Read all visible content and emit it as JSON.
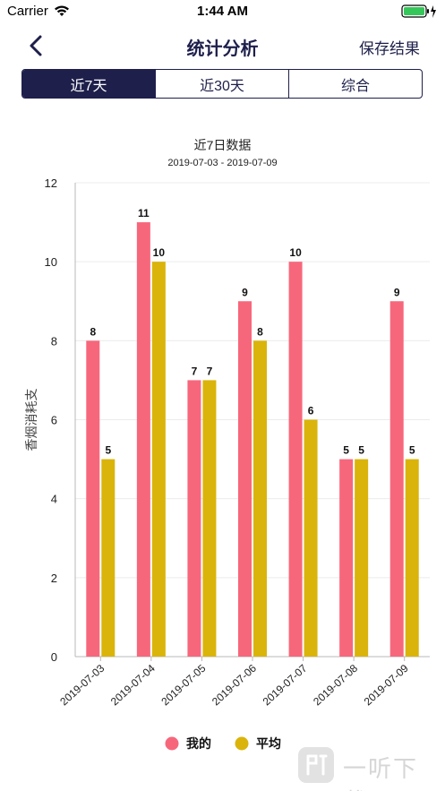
{
  "status_bar": {
    "carrier": "Carrier",
    "time": "1:44 AM"
  },
  "nav": {
    "title": "统计分析",
    "save_label": "保存结果"
  },
  "tabs": [
    {
      "label": "近7天",
      "active": true
    },
    {
      "label": "近30天",
      "active": false
    },
    {
      "label": "综合",
      "active": false
    }
  ],
  "colors": {
    "accent": "#1e1f4b",
    "mine": "#f7677c",
    "average": "#dab40a"
  },
  "chart_data": {
    "type": "bar",
    "title": "近7日数据",
    "subtitle": "2019-07-03 - 2019-07-09",
    "ylabel": "香烟消耗支",
    "xlabel": "",
    "ylim": [
      0,
      12
    ],
    "yticks": [
      0,
      2,
      4,
      6,
      8,
      10,
      12
    ],
    "categories": [
      "2019-07-03",
      "2019-07-04",
      "2019-07-05",
      "2019-07-06",
      "2019-07-07",
      "2019-07-08",
      "2019-07-09"
    ],
    "series": [
      {
        "name": "我的",
        "color": "#f7677c",
        "values": [
          8,
          11,
          7,
          9,
          10,
          5,
          9
        ]
      },
      {
        "name": "平均",
        "color": "#dab40a",
        "values": [
          5,
          10,
          7,
          8,
          6,
          5,
          5
        ]
      }
    ],
    "grid": true,
    "legend": "bottom-center"
  },
  "watermark": {
    "text": "一听下载"
  }
}
